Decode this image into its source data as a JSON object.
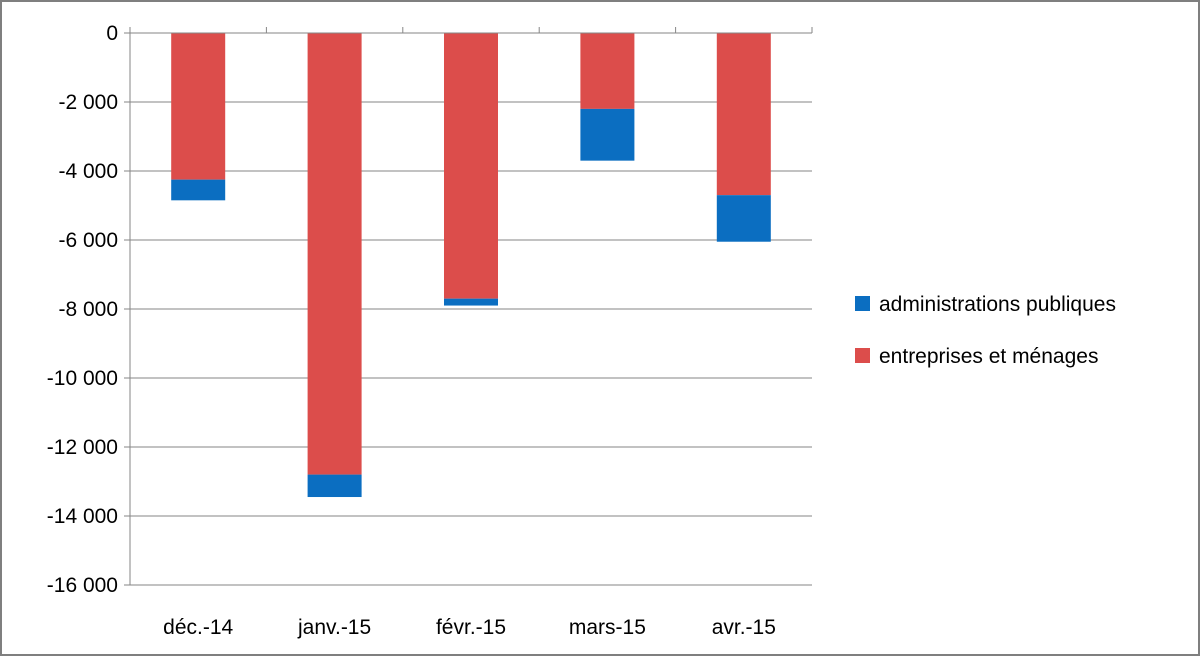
{
  "chart_data": {
    "type": "bar",
    "stacked": true,
    "categories": [
      "déc.-14",
      "janv.-15",
      "févr.-15",
      "mars-15",
      "avr.-15"
    ],
    "series": [
      {
        "name": "entreprises et ménages",
        "color": "#dc4d4b",
        "values": [
          -4250,
          -12800,
          -7700,
          -2200,
          -4700
        ]
      },
      {
        "name": "administrations publiques",
        "color": "#0b6ec1",
        "values": [
          -600,
          -650,
          -200,
          -1500,
          -1350
        ]
      }
    ],
    "legend_order": [
      "administrations publiques",
      "entreprises et ménages"
    ],
    "ylim": [
      -16000,
      0
    ],
    "yticks": [
      0,
      -2000,
      -4000,
      -6000,
      -8000,
      -10000,
      -12000,
      -14000,
      -16000
    ],
    "ytick_labels": [
      "0",
      "-2 000",
      "-4 000",
      "-6 000",
      "-8 000",
      "-10 000",
      "-12 000",
      "-14 000",
      "-16 000"
    ],
    "grid": true,
    "legend_position": "right",
    "title": "",
    "xlabel": "",
    "ylabel": ""
  }
}
